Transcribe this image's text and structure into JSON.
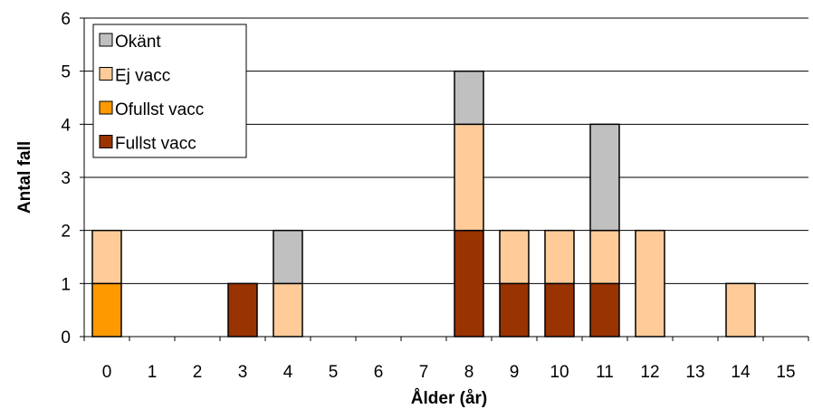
{
  "chart_data": {
    "type": "bar",
    "stacked": true,
    "xlabel": "Ålder (år)",
    "ylabel": "Antal fall",
    "ylim": [
      0,
      6
    ],
    "yticks": [
      "0",
      "1",
      "2",
      "3",
      "4",
      "5",
      "6"
    ],
    "grid": true,
    "legend_position": "top-left",
    "categories": [
      "0",
      "1",
      "2",
      "3",
      "4",
      "5",
      "6",
      "7",
      "8",
      "9",
      "10",
      "11",
      "12",
      "13",
      "14",
      "15"
    ],
    "series": [
      {
        "name": "Fullst vacc",
        "color": "#993300",
        "values": [
          0,
          0,
          0,
          1,
          0,
          0,
          0,
          0,
          2,
          1,
          1,
          1,
          0,
          0,
          0,
          0
        ]
      },
      {
        "name": "Ofullst vacc",
        "color": "#FF9900",
        "values": [
          1,
          0,
          0,
          0,
          0,
          0,
          0,
          0,
          0,
          0,
          0,
          0,
          0,
          0,
          0,
          0
        ]
      },
      {
        "name": "Ej vacc",
        "color": "#FFCC99",
        "values": [
          1,
          0,
          0,
          0,
          1,
          0,
          0,
          0,
          2,
          1,
          1,
          1,
          2,
          0,
          1,
          0
        ]
      },
      {
        "name": "Okänt",
        "color": "#C0C0C0",
        "values": [
          0,
          0,
          0,
          0,
          1,
          0,
          0,
          0,
          1,
          0,
          0,
          2,
          0,
          0,
          0,
          0
        ]
      }
    ],
    "legend_order": [
      "Okänt",
      "Ej vacc",
      "Ofullst vacc",
      "Fullst vacc"
    ]
  }
}
